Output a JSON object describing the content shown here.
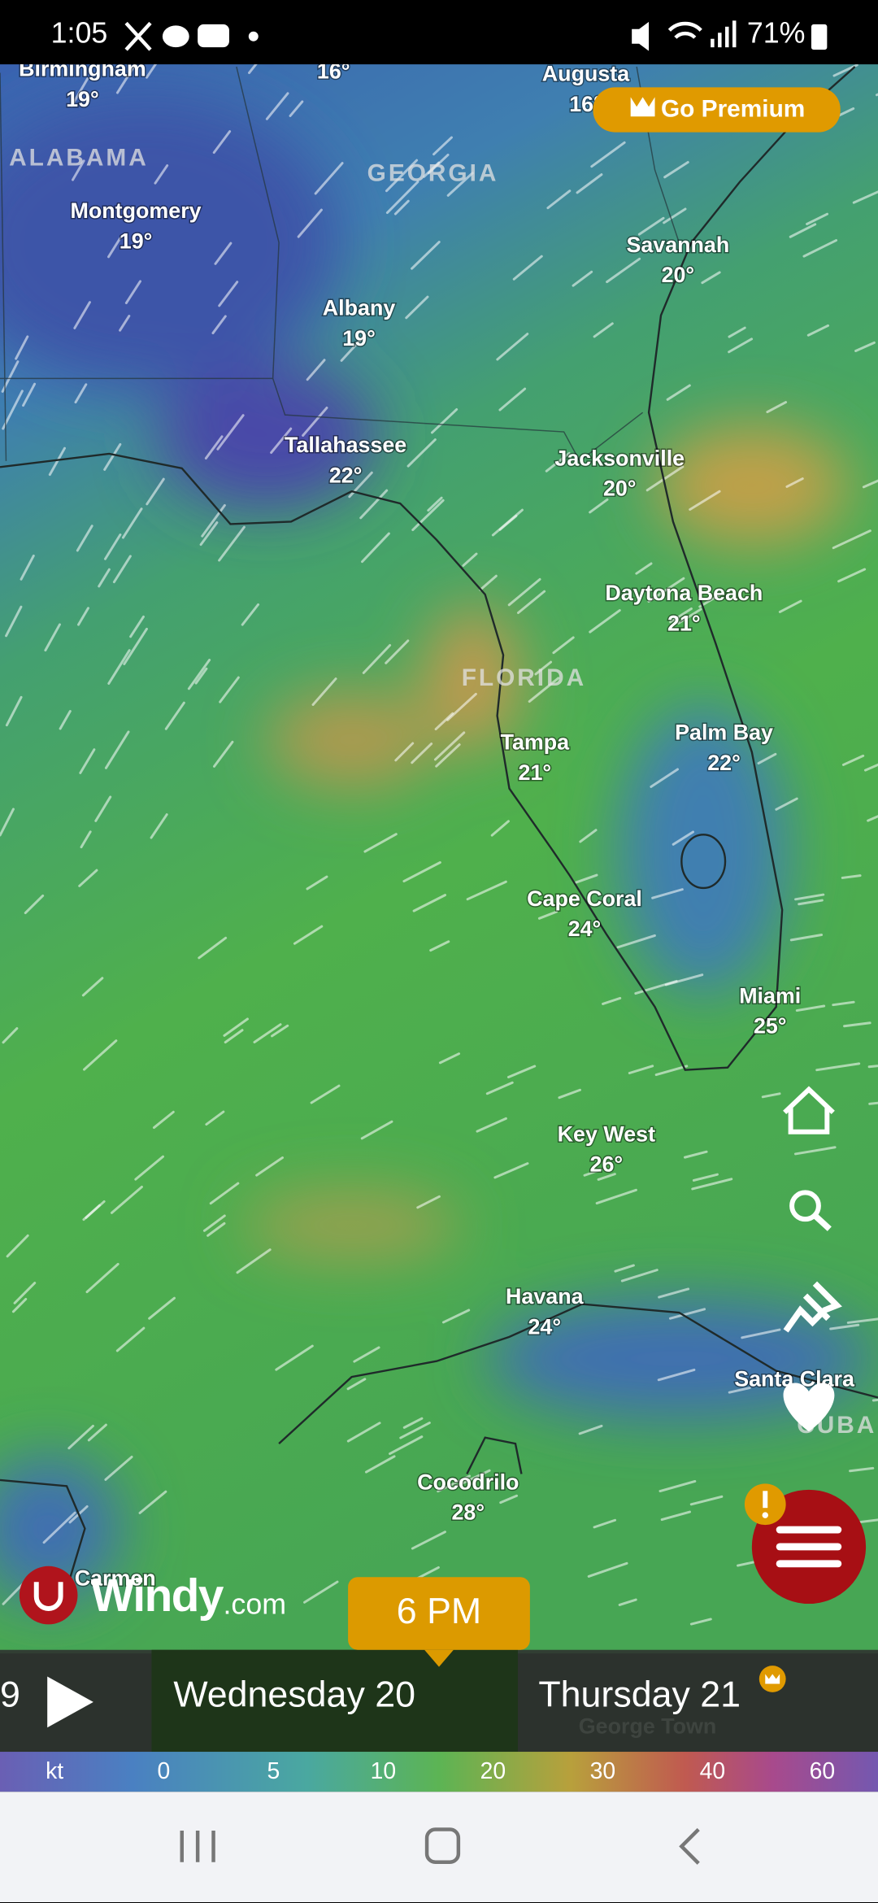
{
  "status_bar": {
    "time": "1:05",
    "battery": "71%"
  },
  "premium_button": {
    "label": "Go Premium"
  },
  "map": {
    "regions": [
      "ALABAMA",
      "GEORGIA",
      "FLORIDA",
      "CUBA"
    ],
    "cities": [
      {
        "name": "Birmingham",
        "temp": "19°"
      },
      {
        "temp": "16°"
      },
      {
        "name": "Augusta",
        "temp": "16°"
      },
      {
        "name": "Montgomery",
        "temp": "19°"
      },
      {
        "name": "Savannah",
        "temp": "20°"
      },
      {
        "name": "Albany",
        "temp": "19°"
      },
      {
        "name": "Tallahassee",
        "temp": "22°"
      },
      {
        "name": "Jacksonville",
        "temp": "20°"
      },
      {
        "name": "Daytona Beach",
        "temp": "21°"
      },
      {
        "name": "Tampa",
        "temp": "21°"
      },
      {
        "name": "Palm Bay",
        "temp": "22°"
      },
      {
        "name": "Cape Coral",
        "temp": "24°"
      },
      {
        "name": "Miami",
        "temp": "25°"
      },
      {
        "name": "Key West",
        "temp": "26°"
      },
      {
        "name": "Havana",
        "temp": "24°"
      },
      {
        "name": "Santa Clara"
      },
      {
        "name": "Cocodrilo",
        "temp": "28°"
      },
      {
        "name": "Carmen"
      },
      {
        "name": "George Town"
      }
    ]
  },
  "logo": {
    "name": "Windy",
    "suffix": ".com"
  },
  "timeline": {
    "prev_fragment": "9",
    "time": "6 PM",
    "days": [
      "Wednesday 20",
      "Thursday 21"
    ]
  },
  "legend": {
    "unit": "kt",
    "values": [
      0,
      5,
      10,
      20,
      30,
      40,
      60
    ]
  }
}
